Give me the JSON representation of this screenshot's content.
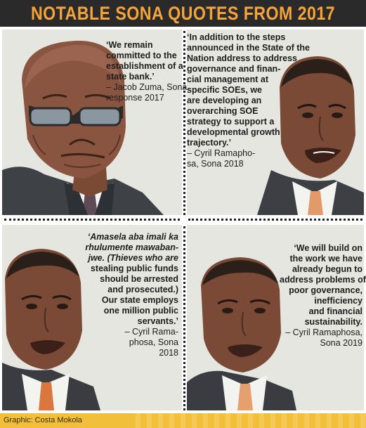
{
  "header": {
    "title": "NOTABLE SONA QUOTES FROM 2017"
  },
  "panels": [
    {
      "subject": "Jacob Zuma",
      "quote_lines": [
        "‘We remain",
        "committed to the",
        "establishment of a",
        "state bank.’",
        "– Jacob Zuma, Sona",
        "response 2017"
      ]
    },
    {
      "subject": "Cyril Ramaphosa",
      "quote_lines": [
        "‘In addition to the steps",
        "announced in the State of the",
        "Nation address to address",
        "governance and finan-",
        "cial management at",
        "specific SOEs, we",
        "are developing an",
        "overarching SOE",
        "strategy to support a",
        "developmental growth",
        "trajectory.’",
        "– Cyril Ramapho-",
        "sa, Sona 2018"
      ]
    },
    {
      "subject": "Cyril Ramaphosa",
      "quote_lines": [
        "‘Amasela aba imali ka",
        "rhulumente mawaban-",
        "jwe. (Thieves who are",
        "stealing public funds",
        "should be arrested",
        "and prosecuted.)",
        "Our state employs",
        "one million public",
        "servants.’",
        "– Cyril Rama-",
        "phosa, Sona",
        "2018"
      ]
    },
    {
      "subject": "Cyril Ramaphosa",
      "quote_lines": [
        "‘We will build on",
        "the work we have",
        "already begun to",
        "address problems of",
        "poor governance,",
        "inefficiency",
        "and financial",
        "sustainability.",
        "– Cyril Ramaphosa,",
        "Sona 2019"
      ]
    }
  ],
  "footer": {
    "credit": "Graphic: Costa Mokola"
  },
  "colors": {
    "header_bg": "#2a2a2a",
    "header_text": "#f5a43a",
    "panel_bg": "#e6e6e0",
    "credit_bg": "#f2bf3a"
  }
}
